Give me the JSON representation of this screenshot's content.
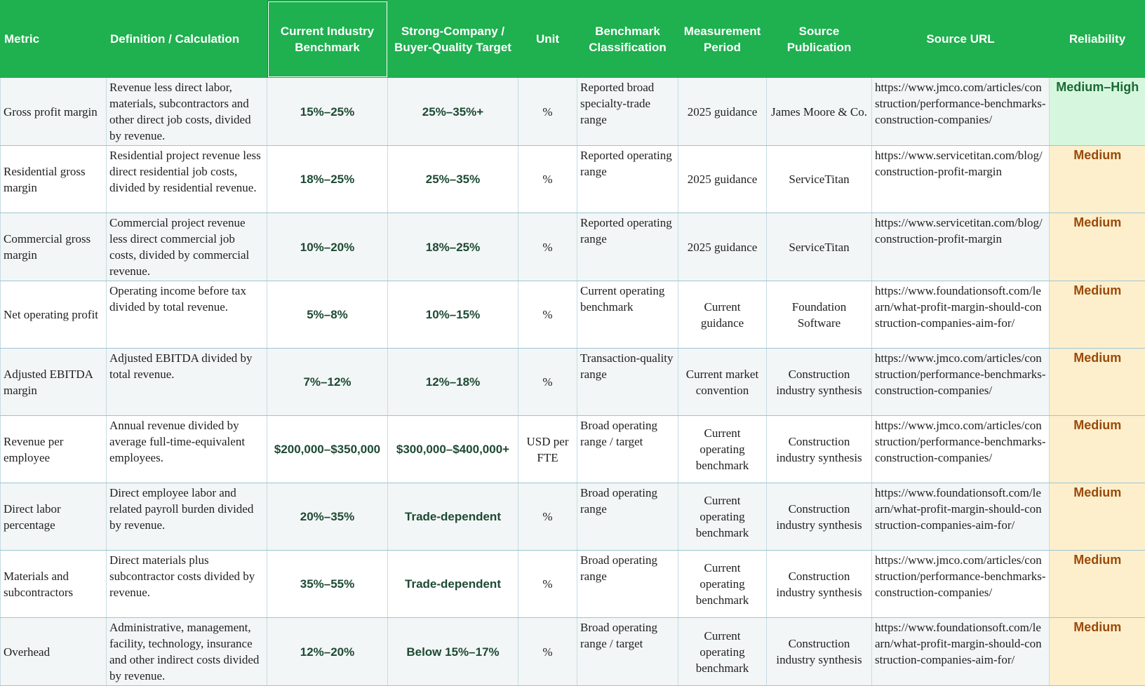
{
  "headers": {
    "metric": "Metric",
    "definition": "Definition / Calculation",
    "benchmark": "Current Industry Benchmark",
    "target": "Strong-Company / Buyer-Quality Target",
    "unit": "Unit",
    "classification": "Benchmark Classification",
    "period": "Measurement Period",
    "publication": "Source Publication",
    "url": "Source URL",
    "reliability": "Reliability"
  },
  "colors": {
    "header_bg": "#1fb04f",
    "medium_bg": "#fdefcc",
    "medium_text": "#9a4a0a",
    "high_bg": "#d6f7de",
    "high_text": "#1a6a35"
  },
  "rows": [
    {
      "metric": "Gross profit margin",
      "definition": "Revenue less direct labor, materials, subcontractors and other direct job costs, divided by revenue.",
      "benchmark": "15%–25%",
      "target": "25%–35%+",
      "unit": "%",
      "classification": "Reported broad specialty-trade range",
      "period": "2025 guidance",
      "publication": "James Moore & Co.",
      "url": "https://www.jmco.com/articles/construction/performance-benchmarks-construction-companies/",
      "reliability": "Medium–High"
    },
    {
      "metric": "Residential gross margin",
      "definition": "Residential project revenue less direct residential job costs, divided by residential revenue.",
      "benchmark": "18%–25%",
      "target": "25%–35%",
      "unit": "%",
      "classification": "Reported operating range",
      "period": "2025 guidance",
      "publication": "ServiceTitan",
      "url": "https://www.servicetitan.com/blog/construction-profit-margin",
      "reliability": "Medium"
    },
    {
      "metric": "Commercial gross margin",
      "definition": "Commercial project revenue less direct commercial job costs, divided by commercial revenue.",
      "benchmark": "10%–20%",
      "target": "18%–25%",
      "unit": "%",
      "classification": "Reported operating range",
      "period": "2025 guidance",
      "publication": "ServiceTitan",
      "url": "https://www.servicetitan.com/blog/construction-profit-margin",
      "reliability": "Medium"
    },
    {
      "metric": "Net operating profit",
      "definition": "Operating income before tax divided by total revenue.",
      "benchmark": "5%–8%",
      "target": "10%–15%",
      "unit": "%",
      "classification": "Current operating benchmark",
      "period": "Current guidance",
      "publication": "Foundation Software",
      "url": "https://www.foundationsoft.com/learn/what-profit-margin-should-construction-companies-aim-for/",
      "reliability": "Medium"
    },
    {
      "metric": "Adjusted EBITDA margin",
      "definition": "Adjusted EBITDA divided by total revenue.",
      "benchmark": "7%–12%",
      "target": "12%–18%",
      "unit": "%",
      "classification": "Transaction-quality range",
      "period": "Current market convention",
      "publication": "Construction industry synthesis",
      "url": "https://www.jmco.com/articles/construction/performance-benchmarks-construction-companies/",
      "reliability": "Medium"
    },
    {
      "metric": "Revenue per employee",
      "definition": "Annual revenue divided by average full-time-equivalent employees.",
      "benchmark": "$200,000–$350,000",
      "target": "$300,000–$400,000+",
      "unit": "USD per FTE",
      "classification": "Broad operating range / target",
      "period": "Current operating benchmark",
      "publication": "Construction industry synthesis",
      "url": "https://www.jmco.com/articles/construction/performance-benchmarks-construction-companies/",
      "reliability": "Medium"
    },
    {
      "metric": "Direct labor percentage",
      "definition": "Direct employee labor and related payroll burden divided by revenue.",
      "benchmark": "20%–35%",
      "target": "Trade-dependent",
      "unit": "%",
      "classification": "Broad operating range",
      "period": "Current operating benchmark",
      "publication": "Construction industry synthesis",
      "url": "https://www.foundationsoft.com/learn/what-profit-margin-should-construction-companies-aim-for/",
      "reliability": "Medium"
    },
    {
      "metric": "Materials and subcontractors",
      "definition": "Direct materials plus subcontractor costs divided by revenue.",
      "benchmark": "35%–55%",
      "target": "Trade-dependent",
      "unit": "%",
      "classification": "Broad operating range",
      "period": "Current operating benchmark",
      "publication": "Construction industry synthesis",
      "url": "https://www.jmco.com/articles/construction/performance-benchmarks-construction-companies/",
      "reliability": "Medium"
    },
    {
      "metric": "Overhead",
      "definition": "Administrative, management, facility, technology, insurance and other indirect costs divided by revenue.",
      "benchmark": "12%–20%",
      "target": "Below 15%–17%",
      "unit": "%",
      "classification": "Broad operating range / target",
      "period": "Current operating benchmark",
      "publication": "Construction industry synthesis",
      "url": "https://www.foundationsoft.com/learn/what-profit-margin-should-construction-companies-aim-for/",
      "reliability": "Medium"
    }
  ]
}
